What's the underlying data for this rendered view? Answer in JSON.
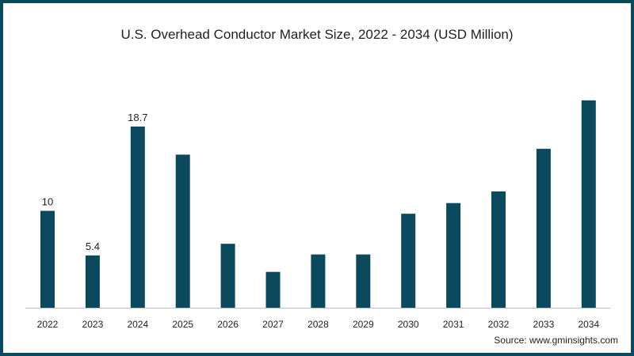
{
  "title": "U.S. Overhead Conductor Market Size, 2022 - 2034 (USD Million)",
  "source": "Source: www.gminsights.com",
  "colors": {
    "bar": "#0b4a5e",
    "frame": "#0b4a5e",
    "axis": "#bfbfbf"
  },
  "chart_data": {
    "type": "bar",
    "title": "U.S. Overhead Conductor Market Size, 2022 - 2034 (USD Million)",
    "xlabel": "",
    "ylabel": "",
    "categories": [
      "2022",
      "2023",
      "2024",
      "2025",
      "2026",
      "2027",
      "2028",
      "2029",
      "2030",
      "2031",
      "2032",
      "2033",
      "2034"
    ],
    "series": [
      {
        "values": [
          10,
          5.4,
          18.7,
          15.8,
          6.6,
          3.7,
          5.5,
          5.5,
          9.7,
          10.8,
          12.0,
          16.4,
          21.4
        ],
        "data_labels": [
          "10",
          "5.4",
          "18.7",
          "",
          "",
          "",
          "",
          "",
          "",
          "",
          "",
          "",
          ""
        ]
      }
    ],
    "ylim": [
      0,
      24
    ],
    "grid": false,
    "legend": "none"
  }
}
